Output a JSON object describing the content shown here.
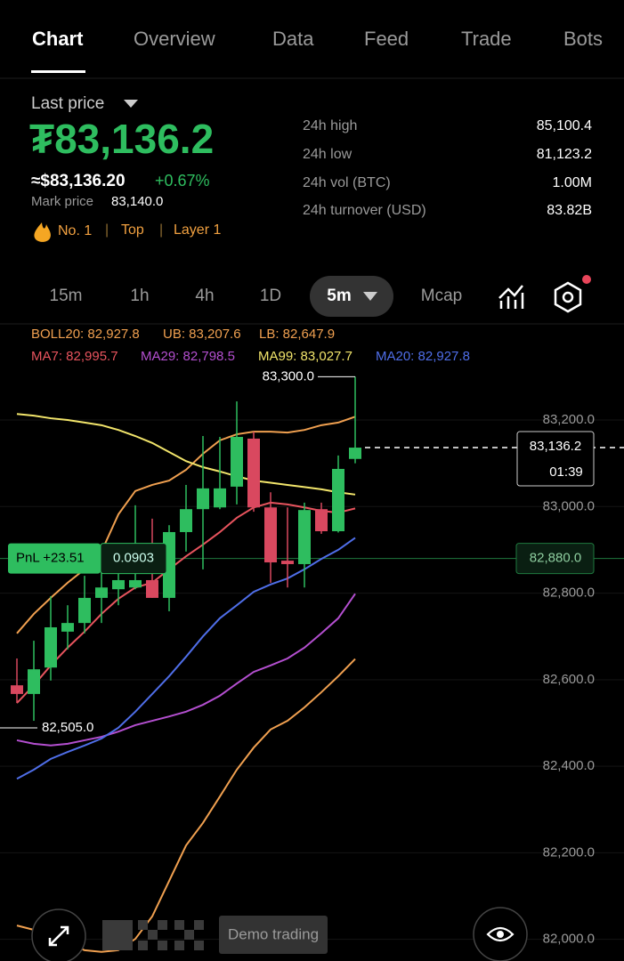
{
  "tabs": [
    "Chart",
    "Overview",
    "Data",
    "Feed",
    "Trade",
    "Bots"
  ],
  "price": {
    "label": "Last price",
    "value": "₮83,136.2",
    "usd": "≈$83,136.20",
    "change": "+0.67%",
    "mark_label": "Mark price",
    "mark_value": "83,140.0",
    "tags": [
      "No. 1",
      "Top",
      "Layer 1"
    ]
  },
  "stats": [
    {
      "label": "24h high",
      "value": "85,100.4"
    },
    {
      "label": "24h low",
      "value": "81,123.2"
    },
    {
      "label": "24h vol (BTC)",
      "value": "1.00M"
    },
    {
      "label": "24h turnover (USD)",
      "value": "83.82B"
    }
  ],
  "intervals": [
    "15m",
    "1h",
    "4h",
    "1D",
    "5m",
    "Mcap"
  ],
  "indicators": [
    [
      {
        "text": "BOLL20: 82,927.8",
        "color": "#f0a050"
      },
      {
        "text": "UB: 83,207.6",
        "color": "#f0a050"
      },
      {
        "text": "LB: 82,647.9",
        "color": "#f0a050"
      }
    ],
    [
      {
        "text": "MA7: 82,995.7",
        "color": "#e8545e"
      },
      {
        "text": "MA29: 82,798.5",
        "color": "#b44fd0"
      },
      {
        "text": "MA99: 83,027.7",
        "color": "#f2e56b"
      },
      {
        "text": "MA20: 82,927.8",
        "color": "#4f6ee8"
      }
    ]
  ],
  "chart": {
    "type": "candlestick",
    "ylim": [
      81950,
      83420
    ],
    "yticks": [
      {
        "value": 83200,
        "label": "83,200.0"
      },
      {
        "value": 83000,
        "label": "83,000.0"
      },
      {
        "value": 82800,
        "label": "82,800.0"
      },
      {
        "value": 82600,
        "label": "82,600.0"
      },
      {
        "value": 82400,
        "label": "82,400.0"
      },
      {
        "value": 82200,
        "label": "82,200.0"
      },
      {
        "value": 82000,
        "label": "82,000.0"
      }
    ],
    "up_color": "#2ebd5f",
    "down_color": "#d9485f",
    "open": [
      82587,
      82567,
      82628,
      82711,
      82731,
      82789,
      82809,
      82813,
      82830,
      82789,
      82941,
      82994,
      82998,
      83046,
      83157,
      82998,
      82875,
      82867,
      82994,
      82943,
      83110
    ],
    "close": [
      82567,
      82624,
      82721,
      82731,
      82789,
      82813,
      82830,
      82830,
      82789,
      82941,
      82994,
      83042,
      83042,
      83161,
      82998,
      82871,
      82867,
      82992,
      82943,
      83087,
      83136.2
    ],
    "high": [
      82649,
      82690,
      82793,
      82772,
      82840,
      82865,
      82896,
      83003,
      82972,
      82957,
      83050,
      83163,
      83161,
      83243,
      83173,
      83033,
      82998,
      83009,
      83009,
      83118,
      83300
    ],
    "low": [
      82546,
      82505,
      82598,
      82670,
      82707,
      82731,
      82772,
      82809,
      82789,
      82758,
      82896,
      82855,
      82994,
      83005,
      82988,
      82824,
      82813,
      82813,
      82937,
      82940,
      83100
    ],
    "series": [
      {
        "color": "#f0a050",
        "values": [
          82707,
          82752,
          82789,
          82824,
          82855,
          82896,
          82982,
          83036,
          83050,
          83060,
          83085,
          83122,
          83153,
          83167,
          83173,
          83173,
          83171,
          83177,
          83188,
          83194,
          83207.6
        ]
      },
      {
        "color": "#f0a050",
        "values": [
          82032,
          82022,
          82012,
          81991,
          81975,
          81971,
          81975,
          82001,
          82053,
          82135,
          82217,
          82269,
          82330,
          82392,
          82443,
          82485,
          82505,
          82536,
          82571,
          82608,
          82647.9
        ]
      },
      {
        "color": "#e8545e",
        "values": [
          82546,
          82587,
          82633,
          82674,
          82711,
          82752,
          82787,
          82813,
          82824,
          82855,
          82885,
          82912,
          82941,
          82974,
          82998,
          83009,
          83005,
          82998,
          82990,
          82986,
          82995.7
        ]
      },
      {
        "color": "#b44fd0",
        "values": [
          82460,
          82452,
          82448,
          82452,
          82460,
          82468,
          82480,
          82495,
          82505,
          82515,
          82526,
          82542,
          82563,
          82591,
          82618,
          82633,
          82649,
          82674,
          82707,
          82742,
          82798.5
        ]
      },
      {
        "color": "#f2e56b",
        "values": [
          83214,
          83210,
          83204,
          83200,
          83194,
          83188,
          83177,
          83163,
          83147,
          83126,
          83105,
          83091,
          83081,
          83070,
          83060,
          83055,
          83050,
          83045,
          83040,
          83033,
          83027.7
        ]
      },
      {
        "color": "#4f6ee8",
        "values": [
          82371,
          82392,
          82417,
          82433,
          82448,
          82464,
          82489,
          82526,
          82567,
          82608,
          82653,
          82700,
          82742,
          82772,
          82803,
          82820,
          82834,
          82855,
          82879,
          82900,
          82927.8
        ]
      }
    ],
    "max_label": "83,300.0",
    "min_label": "82,505.0",
    "current": {
      "value": 83136.2,
      "label": "83,136.2",
      "countdown": "01:39"
    },
    "pnl": {
      "value": 82880,
      "label": "82,880.0",
      "text": "PnL +23.51",
      "size": "0.0903"
    }
  },
  "footer": {
    "demo": "Demo trading"
  }
}
